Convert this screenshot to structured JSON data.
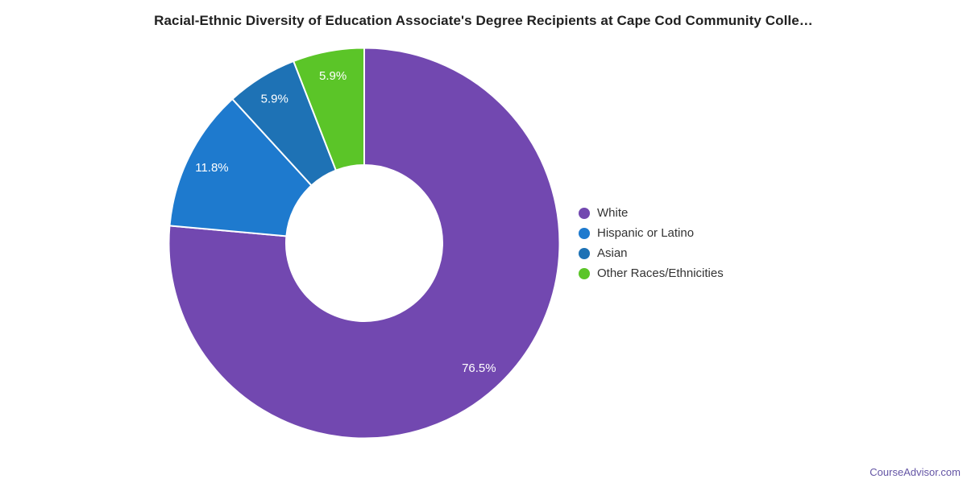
{
  "title": "Racial-Ethnic Diversity of Education Associate's Degree Recipients at Cape Cod Community Colle…",
  "footer": {
    "brand": "CourseAdvisor.com"
  },
  "colors": {
    "background": "#ffffff",
    "title_text": "#212121",
    "legend_text": "#333333",
    "slice_border": "#ffffff",
    "slice_label_text": "#ffffff",
    "brand_text": "#6455A5"
  },
  "chart_data": {
    "type": "pie",
    "subtype": "donut",
    "title": "Racial-Ethnic Diversity of Education Associate's Degree Recipients at Cape Cod Community Colle…",
    "start_angle_deg": 0,
    "direction": "clockwise",
    "inner_radius_ratio": 0.4,
    "label_radius_ratio": 0.87,
    "legend_position": "right",
    "slices": [
      {
        "label": "White",
        "value": 76.5,
        "display": "76.5%",
        "color": "#7248B0"
      },
      {
        "label": "Hispanic or Latino",
        "value": 11.8,
        "display": "11.8%",
        "color": "#1E7ACE"
      },
      {
        "label": "Asian",
        "value": 5.9,
        "display": "5.9%",
        "color": "#1E72B5"
      },
      {
        "label": "Other Races/Ethnicities",
        "value": 5.9,
        "display": "5.9%",
        "color": "#5BC528"
      }
    ]
  }
}
